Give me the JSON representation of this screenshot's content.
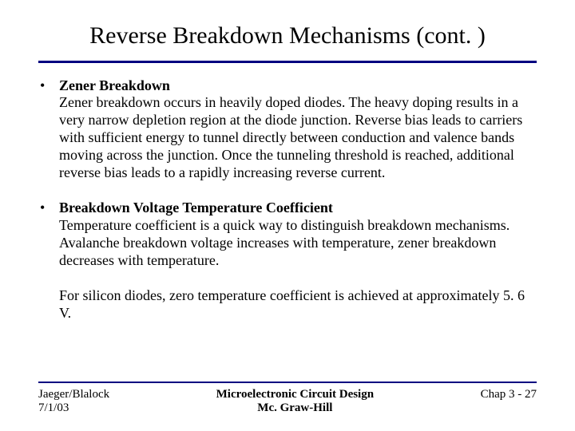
{
  "title": "Reverse Breakdown Mechanisms (cont. )",
  "ruleColor": "#000080",
  "bullets": [
    {
      "heading": "Zener Breakdown",
      "body": "Zener breakdown occurs in heavily doped diodes.  The heavy doping results in a very narrow depletion region at the diode junction.  Reverse bias leads to carriers with sufficient energy to tunnel directly between conduction and valence bands moving across the junction.  Once the tunneling threshold is reached, additional reverse bias leads to a rapidly increasing reverse current."
    },
    {
      "heading": "Breakdown Voltage Temperature Coefficient",
      "body": "Temperature coefficient is a quick way to distinguish breakdown mechanisms.  Avalanche breakdown voltage increases with temperature, zener breakdown decreases with temperature."
    }
  ],
  "extraParagraph": "For silicon diodes, zero temperature coefficient is achieved at approximately 5. 6 V.",
  "footer": {
    "leftLine1": "Jaeger/Blalock",
    "leftLine2": "7/1/03",
    "centerLine1": "Microelectronic Circuit Design",
    "centerLine2": "Mc. Graw-Hill",
    "right": "Chap 3  - 27"
  }
}
